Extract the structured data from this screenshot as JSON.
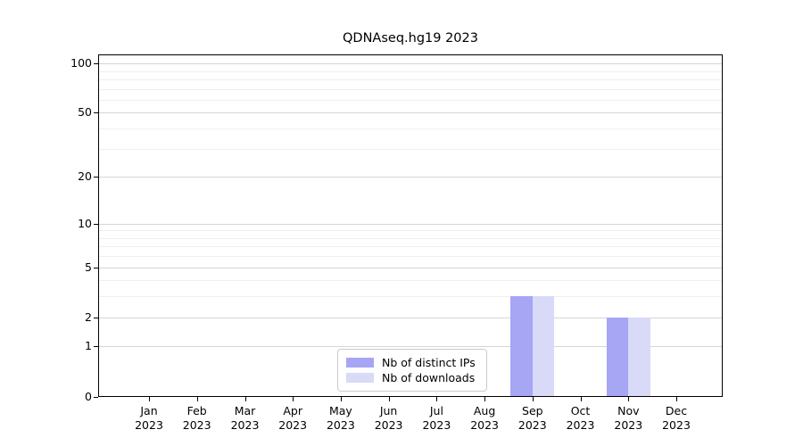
{
  "chart_data": {
    "type": "bar",
    "title": "QDNAseq.hg19 2023",
    "x_tick_labels": [
      {
        "month": "Jan",
        "year": "2023"
      },
      {
        "month": "Feb",
        "year": "2023"
      },
      {
        "month": "Mar",
        "year": "2023"
      },
      {
        "month": "Apr",
        "year": "2023"
      },
      {
        "month": "May",
        "year": "2023"
      },
      {
        "month": "Jun",
        "year": "2023"
      },
      {
        "month": "Jul",
        "year": "2023"
      },
      {
        "month": "Aug",
        "year": "2023"
      },
      {
        "month": "Sep",
        "year": "2023"
      },
      {
        "month": "Oct",
        "year": "2023"
      },
      {
        "month": "Nov",
        "year": "2023"
      },
      {
        "month": "Dec",
        "year": "2023"
      }
    ],
    "series": [
      {
        "name": "Nb of distinct IPs",
        "color": "#a6a6f5",
        "values": [
          0,
          0,
          0,
          0,
          0,
          0,
          0,
          0,
          3,
          0,
          2,
          0
        ]
      },
      {
        "name": "Nb of downloads",
        "color": "#d9d9f8",
        "values": [
          0,
          0,
          0,
          0,
          0,
          0,
          0,
          0,
          3,
          0,
          2,
          0
        ]
      }
    ],
    "y_scale": "log1p",
    "y_ticks": [
      0,
      1,
      2,
      5,
      10,
      20,
      50,
      100
    ],
    "y_minor_gridlines": [
      3,
      4,
      6,
      7,
      8,
      9,
      30,
      40,
      60,
      70,
      80,
      90
    ],
    "ylim": [
      0,
      113
    ],
    "grid": true,
    "legend_position": "bottom-center",
    "colors": {
      "major_grid": "#d6d6d6",
      "minor_grid": "#efefef",
      "axis": "#000000",
      "background": "#ffffff"
    }
  }
}
